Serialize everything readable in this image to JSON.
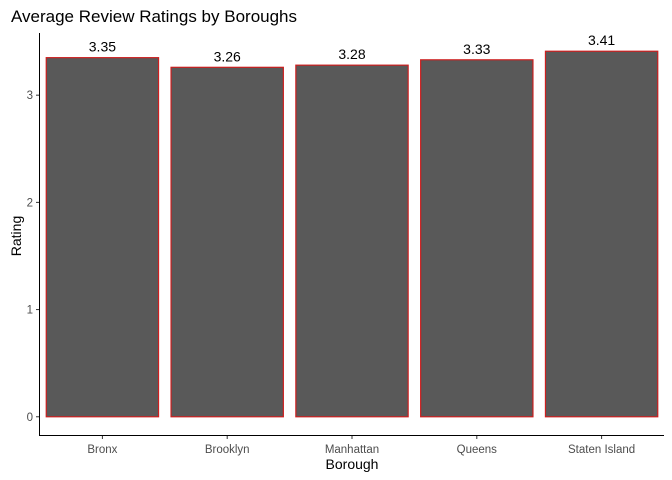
{
  "chart_data": {
    "type": "bar",
    "title": "Average Review Ratings by Boroughs",
    "xlabel": "Borough",
    "ylabel": "Rating",
    "categories": [
      "Bronx",
      "Brooklyn",
      "Manhattan",
      "Queens",
      "Staten Island"
    ],
    "values": [
      3.35,
      3.26,
      3.28,
      3.33,
      3.41
    ],
    "data_labels": [
      "3.35",
      "3.26",
      "3.28",
      "3.33",
      "3.41"
    ],
    "yticks": [
      0,
      1,
      2,
      3
    ],
    "ylim": [
      -0.17,
      3.58
    ],
    "grid": false,
    "bar_fill": "#595959",
    "bar_outline": "#cc1f1f"
  }
}
